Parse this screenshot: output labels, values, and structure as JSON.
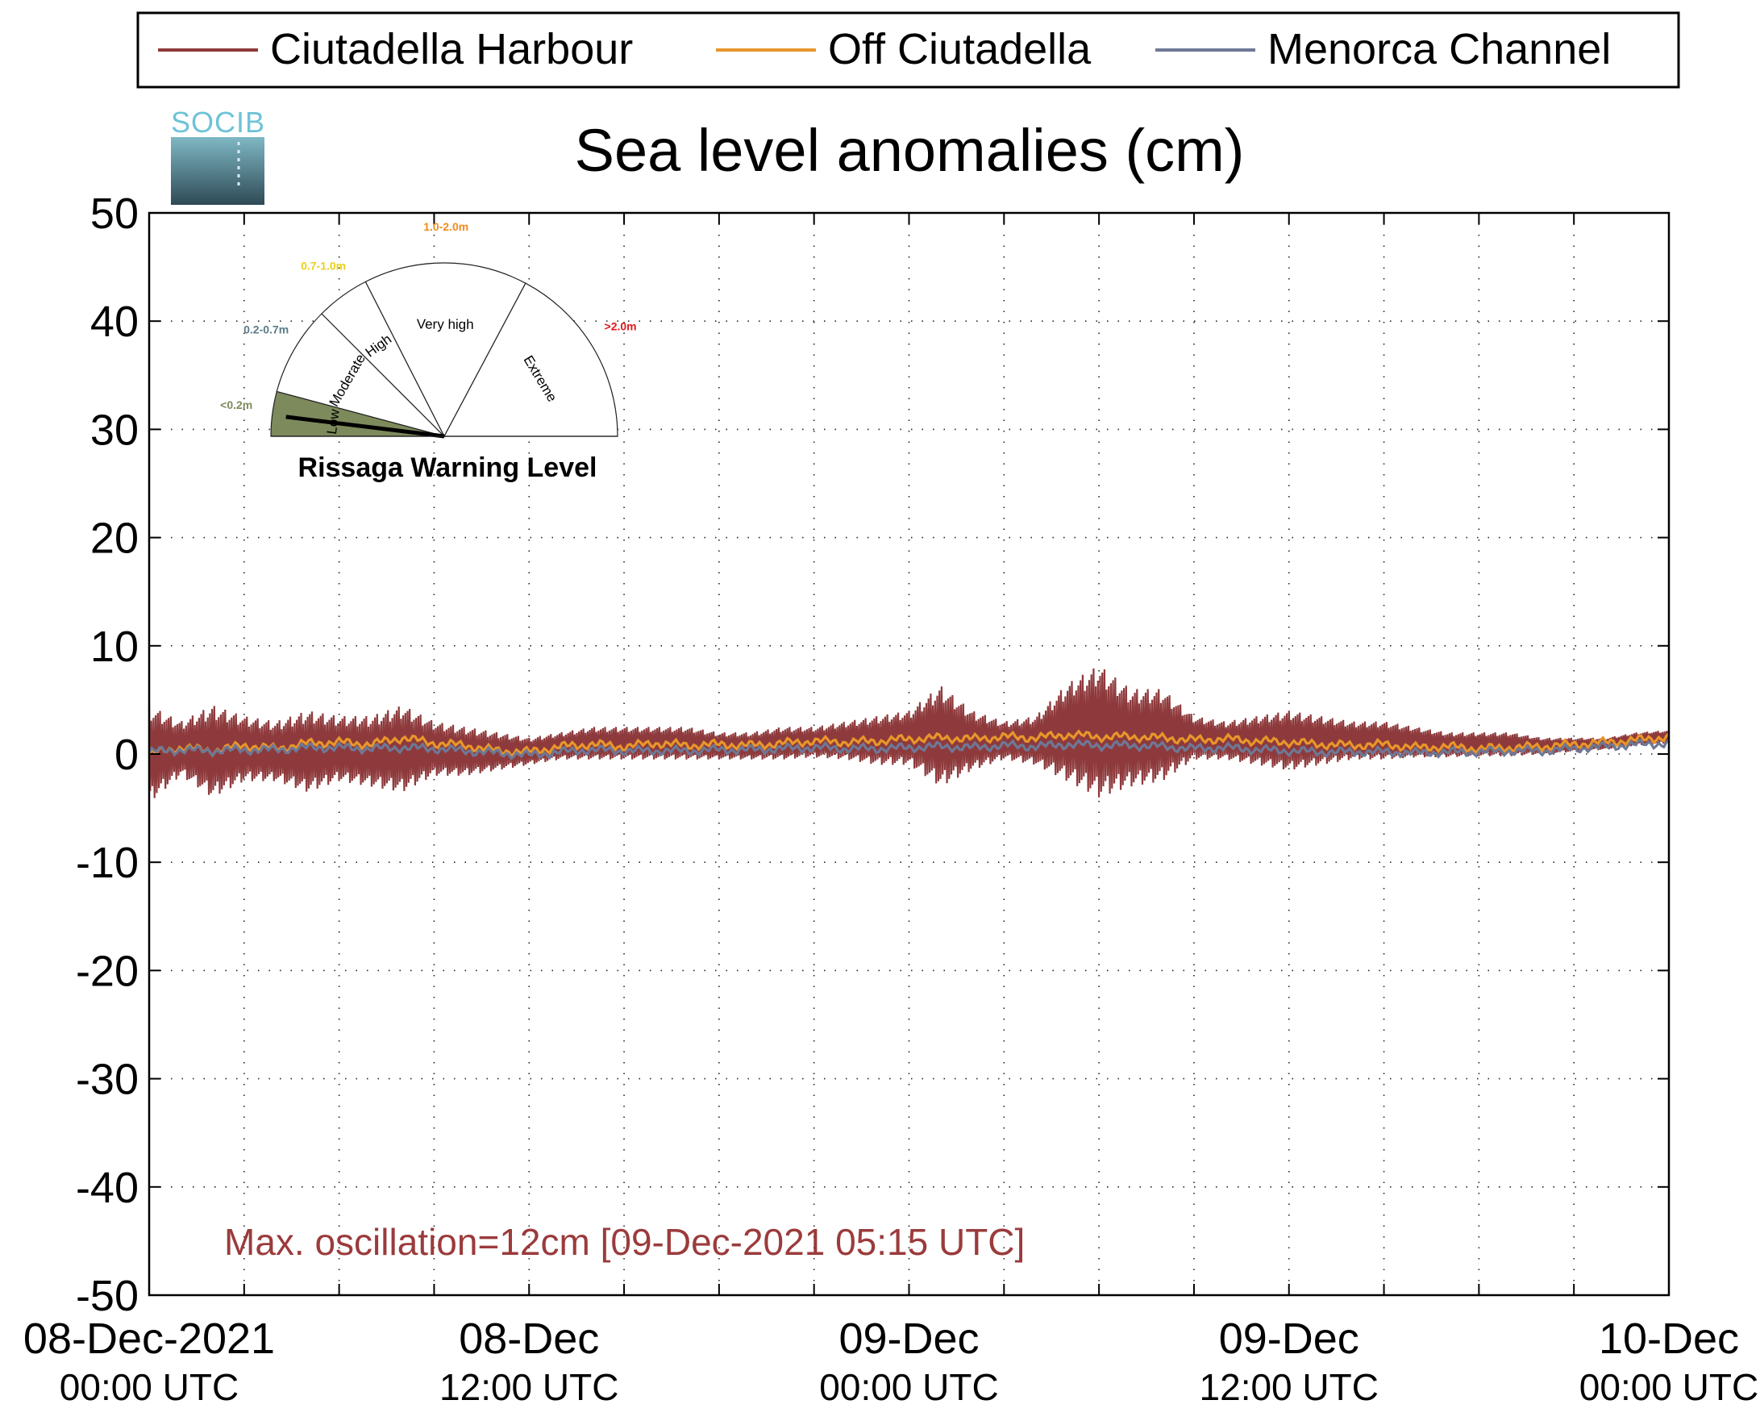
{
  "logo": {
    "text": "SOCIB"
  },
  "chart_data": {
    "type": "line",
    "title": "Sea level anomalies (cm)",
    "xlabel": "",
    "ylabel": "",
    "ylim": [
      -50,
      50
    ],
    "yticks": [
      50,
      40,
      30,
      20,
      10,
      0,
      -10,
      -20,
      -30,
      -40,
      -50
    ],
    "xlim": [
      "2021-12-08T00:00",
      "2021-12-10T00:00"
    ],
    "x_tick_labels": [
      {
        "date": "2021-12-08T00:00",
        "line1": "08-Dec-2021",
        "line2": "00:00 UTC"
      },
      {
        "date": "2021-12-08T12:00",
        "line1": "08-Dec",
        "line2": "12:00 UTC"
      },
      {
        "date": "2021-12-09T00:00",
        "line1": "09-Dec",
        "line2": "00:00 UTC"
      },
      {
        "date": "2021-12-09T12:00",
        "line1": "09-Dec",
        "line2": "12:00 UTC"
      },
      {
        "date": "2021-12-10T00:00",
        "line1": "10-Dec",
        "line2": "00:00 UTC"
      }
    ],
    "grid": true,
    "legend_position": "top",
    "annotation": "Max. oscillation=12cm [09-Dec-2021 05:15 UTC]",
    "annotation_color": "#9b3b3c",
    "series": [
      {
        "name": "Ciutadella Harbour",
        "color": "#8e3a3c",
        "rendering": "high-frequency oscillation around the baseline; band = min/max envelope of the oscillation",
        "x": [
          "2021-12-08T00:00",
          "2021-12-08T01:00",
          "2021-12-08T02:00",
          "2021-12-08T03:00",
          "2021-12-08T04:00",
          "2021-12-08T05:00",
          "2021-12-08T06:00",
          "2021-12-08T07:00",
          "2021-12-08T08:00",
          "2021-12-08T09:00",
          "2021-12-08T10:00",
          "2021-12-08T11:00",
          "2021-12-08T12:00",
          "2021-12-08T13:00",
          "2021-12-08T14:00",
          "2021-12-08T15:00",
          "2021-12-08T16:00",
          "2021-12-08T17:00",
          "2021-12-08T18:00",
          "2021-12-08T19:00",
          "2021-12-08T20:00",
          "2021-12-08T21:00",
          "2021-12-08T22:00",
          "2021-12-08T23:00",
          "2021-12-09T00:00",
          "2021-12-09T01:00",
          "2021-12-09T02:00",
          "2021-12-09T03:00",
          "2021-12-09T04:00",
          "2021-12-09T05:00",
          "2021-12-09T06:00",
          "2021-12-09T07:00",
          "2021-12-09T08:00",
          "2021-12-09T09:00",
          "2021-12-09T10:00",
          "2021-12-09T11:00",
          "2021-12-09T12:00",
          "2021-12-09T13:00",
          "2021-12-09T14:00",
          "2021-12-09T15:00",
          "2021-12-09T16:00",
          "2021-12-09T17:00",
          "2021-12-09T18:00",
          "2021-12-09T19:00",
          "2021-12-09T20:00",
          "2021-12-09T21:00",
          "2021-12-09T22:00",
          "2021-12-09T23:00",
          "2021-12-10T00:00"
        ],
        "values": [
          0.3,
          0.5,
          0.4,
          0.6,
          0.8,
          1.0,
          1.0,
          1.1,
          1.0,
          1.1,
          0.9,
          0.5,
          0.3,
          0.6,
          0.8,
          0.8,
          0.9,
          0.8,
          0.9,
          0.8,
          0.9,
          1.0,
          1.1,
          1.0,
          1.2,
          1.3,
          1.4,
          1.5,
          1.5,
          1.6,
          1.6,
          1.5,
          1.4,
          1.3,
          1.3,
          1.2,
          1.0,
          0.9,
          0.8,
          0.8,
          0.6,
          0.6,
          0.5,
          0.6,
          0.6,
          0.8,
          1.0,
          1.3,
          1.6
        ],
        "band_max": [
          4.5,
          3.0,
          4.5,
          3.5,
          3.0,
          4.0,
          3.5,
          3.5,
          4.5,
          3.0,
          2.5,
          2.0,
          1.5,
          2.0,
          2.5,
          2.5,
          2.5,
          2.5,
          2.0,
          2.0,
          2.5,
          2.5,
          3.0,
          3.5,
          4.0,
          6.3,
          4.0,
          3.0,
          3.5,
          6.5,
          8.2,
          6.0,
          6.0,
          3.5,
          3.0,
          3.5,
          4.0,
          3.5,
          3.0,
          3.0,
          2.5,
          2.0,
          2.0,
          2.0,
          1.5,
          1.5,
          1.5,
          2.0,
          2.2
        ],
        "band_min": [
          -4.5,
          -2.0,
          -4.0,
          -2.5,
          -2.5,
          -3.5,
          -2.5,
          -3.0,
          -3.5,
          -2.0,
          -2.0,
          -1.5,
          -1.0,
          -0.5,
          -0.5,
          -0.5,
          -0.5,
          -0.5,
          -0.5,
          -0.5,
          -0.5,
          -0.3,
          -0.5,
          -1.0,
          -1.0,
          -3.0,
          -1.5,
          -0.5,
          -1.0,
          -2.5,
          -4.0,
          -3.0,
          -2.5,
          -0.5,
          -0.5,
          -1.0,
          -1.5,
          -1.0,
          -0.5,
          -0.5,
          -0.3,
          -0.3,
          -0.2,
          -0.2,
          0.0,
          0.2,
          0.4,
          0.8,
          1.0
        ]
      },
      {
        "name": "Off Ciutadella",
        "color": "#e8962a",
        "x": [
          "2021-12-08T00:00",
          "2021-12-08T01:00",
          "2021-12-08T02:00",
          "2021-12-08T03:00",
          "2021-12-08T04:00",
          "2021-12-08T05:00",
          "2021-12-08T06:00",
          "2021-12-08T07:00",
          "2021-12-08T08:00",
          "2021-12-08T09:00",
          "2021-12-08T10:00",
          "2021-12-08T11:00",
          "2021-12-08T12:00",
          "2021-12-08T13:00",
          "2021-12-08T14:00",
          "2021-12-08T15:00",
          "2021-12-08T16:00",
          "2021-12-08T17:00",
          "2021-12-08T18:00",
          "2021-12-08T19:00",
          "2021-12-08T20:00",
          "2021-12-08T21:00",
          "2021-12-08T22:00",
          "2021-12-08T23:00",
          "2021-12-09T00:00",
          "2021-12-09T01:00",
          "2021-12-09T02:00",
          "2021-12-09T03:00",
          "2021-12-09T04:00",
          "2021-12-09T05:00",
          "2021-12-09T06:00",
          "2021-12-09T07:00",
          "2021-12-09T08:00",
          "2021-12-09T09:00",
          "2021-12-09T10:00",
          "2021-12-09T11:00",
          "2021-12-09T12:00",
          "2021-12-09T13:00",
          "2021-12-09T14:00",
          "2021-12-09T15:00",
          "2021-12-09T16:00",
          "2021-12-09T17:00",
          "2021-12-09T18:00",
          "2021-12-09T19:00",
          "2021-12-09T20:00",
          "2021-12-09T21:00",
          "2021-12-09T22:00",
          "2021-12-09T23:00",
          "2021-12-10T00:00"
        ],
        "values": [
          0.0,
          0.6,
          0.3,
          0.8,
          0.5,
          1.0,
          1.1,
          0.9,
          1.5,
          1.0,
          0.8,
          0.3,
          0.2,
          0.7,
          0.9,
          0.7,
          1.0,
          0.8,
          0.9,
          0.8,
          1.0,
          1.2,
          1.1,
          1.2,
          1.4,
          1.5,
          1.4,
          1.6,
          1.5,
          1.8,
          1.6,
          1.6,
          1.5,
          1.3,
          1.4,
          1.2,
          1.1,
          0.9,
          0.8,
          0.9,
          0.6,
          0.7,
          0.5,
          0.6,
          0.7,
          0.9,
          1.1,
          1.3,
          1.6
        ]
      },
      {
        "name": "Menorca Channel",
        "color": "#6e7896",
        "x": [
          "2021-12-08T00:00",
          "2021-12-08T01:00",
          "2021-12-08T02:00",
          "2021-12-08T03:00",
          "2021-12-08T04:00",
          "2021-12-08T05:00",
          "2021-12-08T06:00",
          "2021-12-08T07:00",
          "2021-12-08T08:00",
          "2021-12-08T09:00",
          "2021-12-08T10:00",
          "2021-12-08T11:00",
          "2021-12-08T12:00",
          "2021-12-08T13:00",
          "2021-12-08T14:00",
          "2021-12-08T15:00",
          "2021-12-08T16:00",
          "2021-12-08T17:00",
          "2021-12-08T18:00",
          "2021-12-08T19:00",
          "2021-12-08T20:00",
          "2021-12-08T21:00",
          "2021-12-08T22:00",
          "2021-12-08T23:00",
          "2021-12-09T00:00",
          "2021-12-09T01:00",
          "2021-12-09T02:00",
          "2021-12-09T03:00",
          "2021-12-09T04:00",
          "2021-12-09T05:00",
          "2021-12-09T06:00",
          "2021-12-09T07:00",
          "2021-12-09T08:00",
          "2021-12-09T09:00",
          "2021-12-09T10:00",
          "2021-12-09T11:00",
          "2021-12-09T12:00",
          "2021-12-09T13:00",
          "2021-12-09T14:00",
          "2021-12-09T15:00",
          "2021-12-09T16:00",
          "2021-12-09T17:00",
          "2021-12-09T18:00",
          "2021-12-09T19:00",
          "2021-12-09T20:00",
          "2021-12-09T21:00",
          "2021-12-09T22:00",
          "2021-12-09T23:00",
          "2021-12-10T00:00"
        ],
        "values": [
          0.2,
          0.4,
          0.3,
          0.4,
          0.4,
          0.6,
          0.6,
          0.5,
          0.6,
          0.5,
          0.3,
          0.1,
          -0.1,
          0.2,
          0.4,
          0.3,
          0.3,
          0.3,
          0.4,
          0.4,
          0.5,
          0.6,
          0.5,
          0.5,
          0.6,
          0.7,
          0.6,
          0.8,
          0.7,
          0.9,
          0.8,
          0.8,
          0.7,
          0.5,
          0.6,
          0.4,
          0.3,
          0.2,
          0.2,
          0.2,
          0.1,
          0.2,
          0.2,
          0.3,
          0.3,
          0.5,
          0.7,
          0.9,
          1.0
        ]
      }
    ]
  },
  "gauge": {
    "title": "Rissaga Warning Level",
    "current_level": "Low",
    "sectors": [
      {
        "name": "Low",
        "range": "<0.2m",
        "range_color": "#7d8a5c",
        "fill": "#7d8a5c",
        "active": true
      },
      {
        "name": "Moderate",
        "range": "0.2-0.7m",
        "range_color": "#5b7b88",
        "fill": "#ffffff",
        "active": false
      },
      {
        "name": "High",
        "range": "0.7-1.0m",
        "range_color": "#e9d21b",
        "fill": "#ffffff",
        "active": false
      },
      {
        "name": "Very high",
        "range": "1.0-2.0m",
        "range_color": "#ef8c1f",
        "fill": "#ffffff",
        "active": false
      },
      {
        "name": "Extreme",
        "range": ">2.0m",
        "range_color": "#e0191d",
        "fill": "#ffffff",
        "active": false
      }
    ]
  }
}
